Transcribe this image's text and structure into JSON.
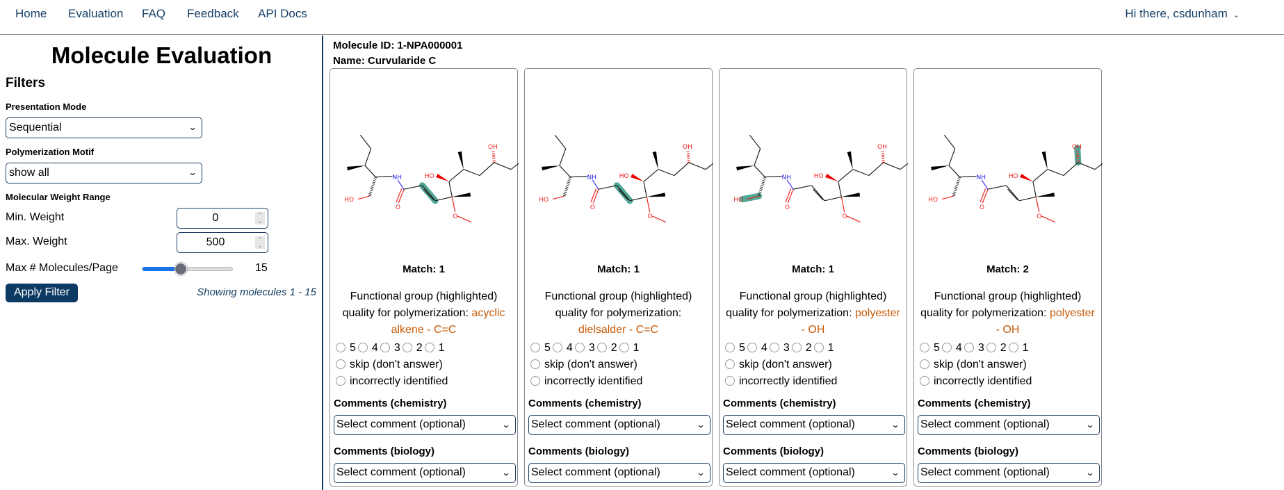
{
  "nav": {
    "items": [
      "Home",
      "Evaluation",
      "FAQ",
      "Feedback",
      "API Docs"
    ],
    "user": "Hi there, csdunham"
  },
  "sidebar": {
    "title": "Molecule Evaluation",
    "filters": "Filters",
    "presentation_label": "Presentation Mode",
    "presentation_value": "Sequential",
    "motif_label": "Polymerization Motif",
    "motif_value": "show all",
    "weight_label": "Molecular Weight Range",
    "min_label": "Min. Weight",
    "min_value": "0",
    "max_label": "Max. Weight",
    "max_value": "500",
    "per_page_label": "Max # Molecules/Page",
    "per_page_value": "15",
    "per_page_fraction": 0.43,
    "apply": "Apply Filter",
    "showing": "Showing molecules 1 - 15"
  },
  "molecule": {
    "id": "Molecule ID: 1-NPA000001",
    "name": "Name: Curvularide C"
  },
  "highlight_color": "#3d9e8a",
  "motif_color": "#c85a06",
  "cards": [
    {
      "match": "Match: 1",
      "fg_text": "Functional group (highlighted) quality for polymerization: ",
      "motif": "acyclic alkene - C=C",
      "highlight": "alkene"
    },
    {
      "match": "Match: 1",
      "fg_text": "Functional group (highlighted) quality for polymerization: ",
      "motif": "dielsalder - C=C",
      "highlight": "alkene"
    },
    {
      "match": "Match: 1",
      "fg_text": "Functional group (highlighted) quality for polymerization: ",
      "motif": "polyester - OH",
      "highlight": "oh-left"
    },
    {
      "match": "Match: 2",
      "fg_text": "Functional group (highlighted) quality for polymerization: ",
      "motif": "polyester - OH",
      "highlight": "oh-top"
    }
  ],
  "card_common": {
    "ratings": [
      "5",
      "4",
      "3",
      "2",
      "1"
    ],
    "skip": "skip (don't answer)",
    "incorrect": "incorrectly identified",
    "chem_label": "Comments (chemistry)",
    "bio_label": "Comments (biology)",
    "select_placeholder": "Select comment (optional)"
  }
}
